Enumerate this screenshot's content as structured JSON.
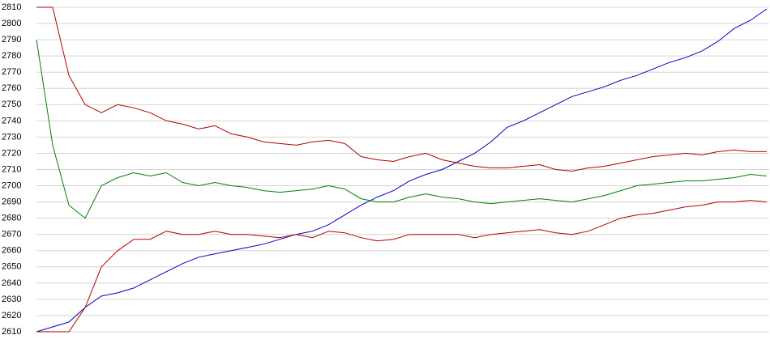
{
  "chart_data": {
    "type": "line",
    "ylim": [
      2610,
      2810
    ],
    "yticks": [
      2610,
      2620,
      2630,
      2640,
      2650,
      2660,
      2670,
      2680,
      2690,
      2700,
      2710,
      2720,
      2730,
      2740,
      2750,
      2760,
      2770,
      2780,
      2790,
      2800,
      2810
    ],
    "grid": true,
    "series": [
      {
        "color": "#0000c8",
        "values": [
          2610,
          2613,
          2616,
          2625,
          2632,
          2634,
          2637,
          2642,
          2647,
          2652,
          2656,
          2658,
          2660,
          2662,
          2664,
          2667,
          2670,
          2672,
          2676,
          2682,
          2688,
          2693,
          2697,
          2703,
          2707,
          2710,
          2715,
          2720,
          2727,
          2736,
          2740,
          2745,
          2750,
          2755,
          2758,
          2761,
          2765,
          2768,
          2772,
          2776,
          2779,
          2783,
          2789,
          2797,
          2802,
          2809
        ]
      },
      {
        "color": "#b40000",
        "values": [
          2810,
          2810,
          2768,
          2750,
          2745,
          2750,
          2748,
          2745,
          2740,
          2738,
          2735,
          2737,
          2732,
          2730,
          2727,
          2726,
          2725,
          2727,
          2728,
          2726,
          2718,
          2716,
          2715,
          2718,
          2720,
          2716,
          2714,
          2712,
          2711,
          2711,
          2712,
          2713,
          2710,
          2709,
          2711,
          2712,
          2714,
          2716,
          2718,
          2719,
          2720,
          2719,
          2721,
          2722,
          2721,
          2721
        ]
      },
      {
        "color": "#008000",
        "values": [
          2790,
          2725,
          2688,
          2680,
          2700,
          2705,
          2708,
          2706,
          2708,
          2702,
          2700,
          2702,
          2700,
          2699,
          2697,
          2696,
          2697,
          2698,
          2700,
          2698,
          2692,
          2690,
          2690,
          2693,
          2695,
          2693,
          2692,
          2690,
          2689,
          2690,
          2691,
          2692,
          2691,
          2690,
          2692,
          2694,
          2697,
          2700,
          2701,
          2702,
          2703,
          2703,
          2704,
          2705,
          2707,
          2706
        ]
      },
      {
        "color": "#b40000",
        "values": [
          2610,
          2610,
          2610,
          2625,
          2650,
          2660,
          2667,
          2667,
          2672,
          2670,
          2670,
          2672,
          2670,
          2670,
          2669,
          2668,
          2670,
          2668,
          2672,
          2671,
          2668,
          2666,
          2667,
          2670,
          2670,
          2670,
          2670,
          2668,
          2670,
          2671,
          2672,
          2673,
          2671,
          2670,
          2672,
          2676,
          2680,
          2682,
          2683,
          2685,
          2687,
          2688,
          2690,
          2690,
          2691,
          2690
        ]
      }
    ]
  }
}
